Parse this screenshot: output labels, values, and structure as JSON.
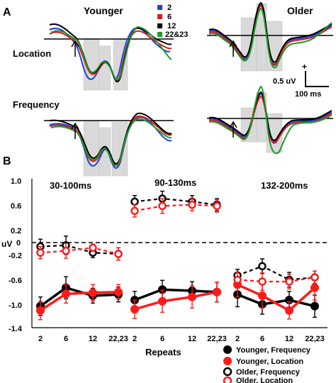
{
  "colors": {
    "c2": "#1f3fd6",
    "c6": "#e11b1b",
    "c12": "#000000",
    "c2223": "#1d9a2a",
    "shade": "#d9d9d9",
    "black": "#000000",
    "red": "#ff1a1a"
  },
  "panelA": {
    "panel_label": "A",
    "younger_title": "Younger",
    "older_title": "Older",
    "row_location": "Location",
    "row_frequency": "Frequency",
    "legend": [
      "2",
      "6",
      "12",
      "22&23"
    ],
    "scale_y": "0.5 uV",
    "scale_x": "100 ms",
    "scale_plus": "+"
  },
  "panelB": {
    "panel_label": "B",
    "window_labels": [
      "30-100ms",
      "90-130ms",
      "132-200ms"
    ],
    "uv_label": "uV",
    "ytick_labels": [
      "1.0",
      "0.6",
      "0.2",
      "0",
      "-0.2",
      "-0.6",
      "-1.0",
      "-1.4"
    ],
    "xtick_labels": [
      "2",
      "6",
      "12",
      "22,23",
      "2",
      "6",
      "12",
      "22,23",
      "2",
      "6",
      "12",
      "22,23"
    ],
    "xlabel": "Repeats",
    "legend": [
      "Younger, Frequency",
      "Younger, Location",
      "Older, Frequency",
      "Older, Location"
    ]
  },
  "chart_data": [
    {
      "type": "line",
      "panel": "A",
      "series": [
        {
          "name": "2"
        },
        {
          "name": "6"
        },
        {
          "name": "12"
        },
        {
          "name": "22&23"
        }
      ]
    },
    {
      "type": "line",
      "panel": "B",
      "ylabel": "uV",
      "xlabel": "Repeats",
      "ylim": [
        -1.4,
        1.0
      ],
      "windows": [
        {
          "label": "30-100ms",
          "categories": [
            "2",
            "6",
            "12",
            "22,23"
          ],
          "series": [
            {
              "name": "Younger, Frequency",
              "values": [
                -1.05,
                -0.75,
                -0.88,
                -0.86
              ],
              "err": [
                0.15,
                0.18,
                0.12,
                0.12
              ]
            },
            {
              "name": "Younger, Location",
              "values": [
                -1.12,
                -0.85,
                -0.83,
                -0.82
              ],
              "err": [
                0.15,
                0.15,
                0.13,
                0.12
              ]
            },
            {
              "name": "Older, Frequency",
              "values": [
                -0.08,
                -0.06,
                -0.18,
                -0.2
              ],
              "err": [
                0.12,
                0.15,
                0.08,
                0.1
              ]
            },
            {
              "name": "Older, Location",
              "values": [
                -0.18,
                -0.15,
                -0.1,
                -0.2
              ],
              "err": [
                0.1,
                0.12,
                0.06,
                0.1
              ]
            }
          ]
        },
        {
          "label": "90-130ms",
          "categories": [
            "2",
            "6",
            "12",
            "22,23"
          ],
          "series": [
            {
              "name": "Younger, Frequency",
              "values": [
                -0.95,
                -0.78,
                -0.8,
                -0.82
              ],
              "err": [
                0.14,
                0.15,
                0.15,
                0.16
              ]
            },
            {
              "name": "Younger, Location",
              "values": [
                -1.1,
                -0.97,
                -0.9,
                -0.82
              ],
              "err": [
                0.15,
                0.18,
                0.18,
                0.16
              ]
            },
            {
              "name": "Older, Frequency",
              "values": [
                0.65,
                0.7,
                0.65,
                0.6
              ],
              "err": [
                0.1,
                0.12,
                0.1,
                0.1
              ]
            },
            {
              "name": "Older, Location",
              "values": [
                0.5,
                0.58,
                0.6,
                0.58
              ],
              "err": [
                0.1,
                0.12,
                0.1,
                0.1
              ]
            }
          ]
        },
        {
          "label": "132-200ms",
          "categories": [
            "2",
            "6",
            "12",
            "22,23"
          ],
          "series": [
            {
              "name": "Younger, Frequency",
              "values": [
                -0.86,
                -1.02,
                -0.95,
                -1.05
              ],
              "err": [
                0.2,
                0.16,
                0.14,
                0.18
              ]
            },
            {
              "name": "Younger, Location",
              "values": [
                -0.7,
                -0.88,
                -1.12,
                -0.75
              ],
              "err": [
                0.2,
                0.2,
                0.14,
                0.2
              ]
            },
            {
              "name": "Older, Frequency",
              "values": [
                -0.55,
                -0.4,
                -0.62,
                -0.58
              ],
              "err": [
                0.1,
                0.12,
                0.12,
                0.1
              ]
            },
            {
              "name": "Older, Location",
              "values": [
                -0.62,
                -0.65,
                -0.65,
                -0.58
              ],
              "err": [
                0.12,
                0.14,
                0.12,
                0.1
              ]
            }
          ]
        }
      ]
    }
  ]
}
